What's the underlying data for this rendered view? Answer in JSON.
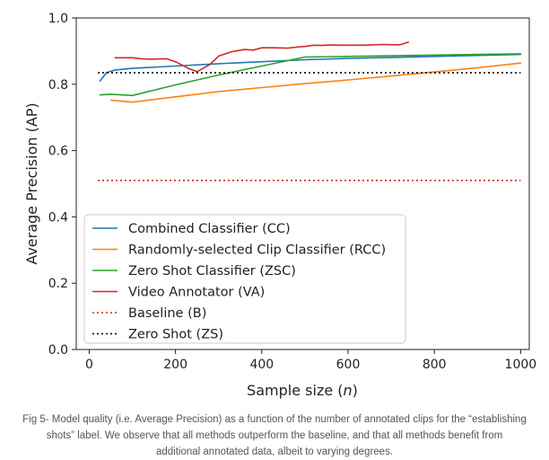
{
  "chart_data": {
    "type": "line",
    "xlabel_prefix": "Sample size (",
    "xlabel_var": "n",
    "xlabel_suffix": ")",
    "ylabel": "Average Precision (AP)",
    "xlim": [
      -30,
      1020
    ],
    "ylim": [
      0.0,
      1.0
    ],
    "x_ticks": [
      0,
      200,
      400,
      600,
      800,
      1000
    ],
    "y_ticks": [
      0.0,
      0.2,
      0.4,
      0.6,
      0.8,
      1.0
    ],
    "x_tick_labels": [
      "0",
      "200",
      "400",
      "600",
      "800",
      "1000"
    ],
    "y_tick_labels": [
      "0.0",
      "0.2",
      "0.4",
      "0.6",
      "0.8",
      "1.0"
    ],
    "grid": false,
    "legend_position": "lower-left",
    "series": [
      {
        "name": "Combined Classifier (CC)",
        "color": "#1f77b4",
        "style": "solid",
        "x": [
          25,
          40,
          60,
          100,
          200,
          300,
          400,
          500,
          600,
          700,
          800,
          900,
          1000
        ],
        "y": [
          0.81,
          0.835,
          0.843,
          0.848,
          0.855,
          0.862,
          0.868,
          0.874,
          0.878,
          0.881,
          0.884,
          0.887,
          0.89
        ]
      },
      {
        "name": "Randomly-selected Clip Classifier (RCC)",
        "color": "#ff7f0e",
        "style": "solid",
        "x": [
          50,
          100,
          200,
          300,
          400,
          500,
          600,
          700,
          800,
          900,
          1000
        ],
        "y": [
          0.752,
          0.746,
          0.762,
          0.778,
          0.79,
          0.802,
          0.813,
          0.825,
          0.837,
          0.85,
          0.864
        ]
      },
      {
        "name": "Zero Shot Classifier (ZSC)",
        "color": "#2ca02c",
        "style": "solid",
        "x": [
          25,
          50,
          100,
          200,
          300,
          400,
          500,
          600,
          700,
          800,
          900,
          1000
        ],
        "y": [
          0.768,
          0.77,
          0.766,
          0.798,
          0.828,
          0.855,
          0.882,
          0.884,
          0.886,
          0.888,
          0.89,
          0.892
        ]
      },
      {
        "name": "Video Annotator (VA)",
        "color": "#d62728",
        "style": "solid",
        "x": [
          60,
          100,
          120,
          140,
          180,
          200,
          230,
          250,
          280,
          300,
          330,
          360,
          380,
          400,
          430,
          460,
          480,
          500,
          520,
          540,
          560,
          580,
          600,
          640,
          680,
          720,
          740
        ],
        "y": [
          0.88,
          0.88,
          0.877,
          0.876,
          0.877,
          0.868,
          0.848,
          0.838,
          0.86,
          0.885,
          0.898,
          0.905,
          0.903,
          0.91,
          0.91,
          0.909,
          0.912,
          0.914,
          0.918,
          0.917,
          0.919,
          0.918,
          0.918,
          0.918,
          0.92,
          0.919,
          0.927
        ]
      },
      {
        "name": "Baseline (B)",
        "color": "#d62728",
        "style": "dotted",
        "x": [
          20,
          1000
        ],
        "y": [
          0.51,
          0.51
        ]
      },
      {
        "name": "Zero Shot (ZS)",
        "color": "#000000",
        "style": "dotted",
        "x": [
          20,
          1000
        ],
        "y": [
          0.835,
          0.835
        ]
      }
    ]
  },
  "caption_lines": [
    "Fig 5- Model quality (i.e. Average Precision) as a function of the number of annotated clips for the “establishing",
    "shots” label. We observe that all methods outperform the baseline, and that all methods benefit from",
    "additional annotated data, albeit to varying degrees."
  ]
}
